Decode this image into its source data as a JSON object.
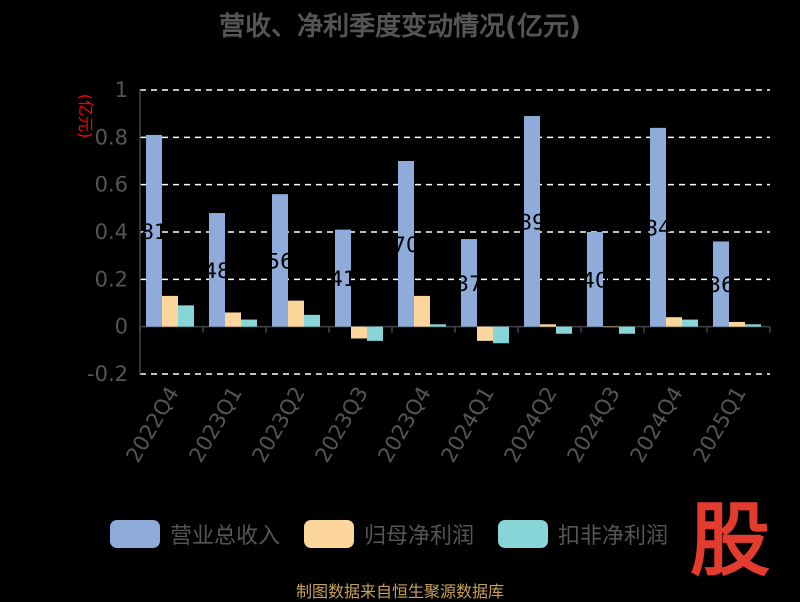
{
  "chart_data": {
    "type": "bar",
    "title": "营收、净利季度变动情况(亿元)",
    "ylabel": "(亿元)",
    "ylim": [
      -0.2,
      1
    ],
    "yticks": [
      -0.2,
      0,
      0.2,
      0.4,
      0.6,
      0.8,
      1
    ],
    "ytick_labels": [
      "-0.2",
      "0",
      "0.2",
      "0.4",
      "0.6",
      "0.8",
      "1"
    ],
    "grid": true,
    "categories": [
      "2022Q4",
      "2023Q1",
      "2023Q2",
      "2023Q3",
      "2023Q4",
      "2024Q1",
      "2024Q2",
      "2024Q3",
      "2024Q4",
      "2025Q1"
    ],
    "series": [
      {
        "name": "营业总收入",
        "color": "#8eabd9",
        "values": [
          0.81,
          0.48,
          0.56,
          0.41,
          0.7,
          0.37,
          0.89,
          0.4,
          0.84,
          0.36
        ]
      },
      {
        "name": "归母净利润",
        "color": "#fdd69c",
        "values": [
          0.13,
          0.06,
          0.11,
          -0.05,
          0.13,
          -0.06,
          0.01,
          0.0,
          0.04,
          0.02
        ]
      },
      {
        "name": "扣非净利润",
        "color": "#88d5d7",
        "values": [
          0.09,
          0.03,
          0.05,
          -0.06,
          0.01,
          -0.07,
          -0.03,
          -0.03,
          0.03,
          0.01
        ]
      }
    ],
    "bar_labels": [
      "81",
      "48",
      "56",
      "41",
      "70",
      "37",
      "89",
      "40",
      "84",
      "36"
    ],
    "legend_position": "bottom"
  },
  "watermark": "股",
  "source": "制图数据来自恒生聚源数据库"
}
